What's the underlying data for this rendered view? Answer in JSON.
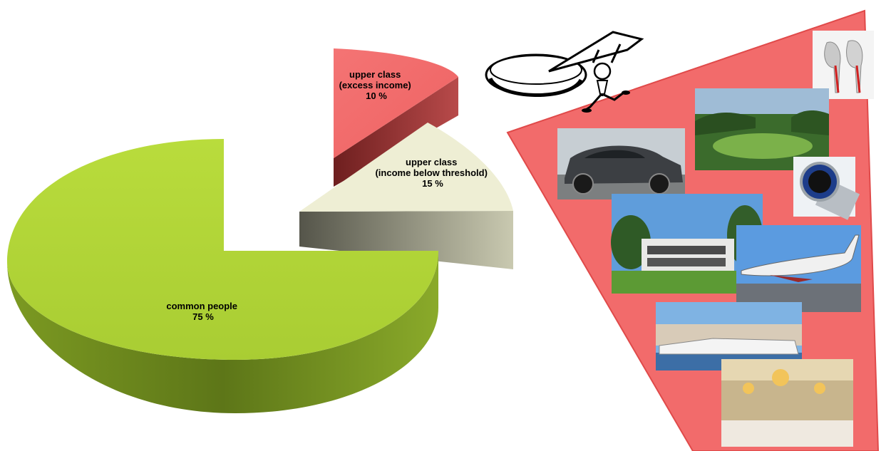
{
  "chart_data": {
    "type": "pie",
    "style": "3d-exploded",
    "slices": [
      {
        "label_lines": [
          "common people",
          "75 %"
        ],
        "value": 75,
        "color": "#b5d63a",
        "side_color": "#6f8a1e"
      },
      {
        "label_lines": [
          "upper class",
          "(income below threshold)",
          "15 %"
        ],
        "value": 15,
        "color": "#f0f0d6",
        "side_color": "#8a8a78"
      },
      {
        "label_lines": [
          "upper class",
          "(excess income)",
          "10 %"
        ],
        "value": 10,
        "color": "#f26b6b",
        "side_color": "#8b2a2a"
      }
    ],
    "legend": "none"
  },
  "illustration": {
    "cartoon": "man lifting slice of pie",
    "luxury_items": [
      "red-sole high heels",
      "golf course",
      "luxury suv",
      "luxury watch",
      "modern villa",
      "private jet",
      "yachts",
      "chandelier ballroom"
    ]
  },
  "colors": {
    "callout": "#f26b6b",
    "callout_border": "#e04040"
  }
}
